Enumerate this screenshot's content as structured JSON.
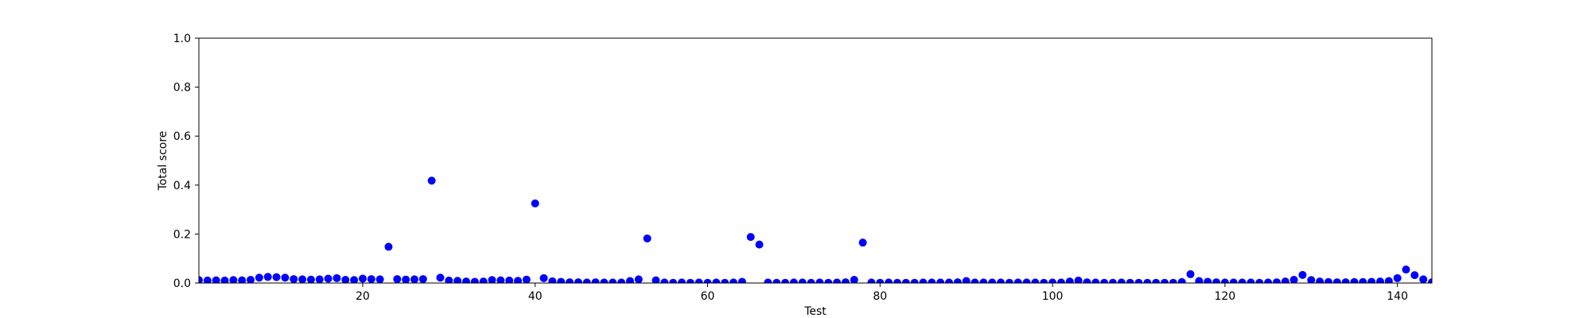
{
  "chart_data": {
    "type": "scatter",
    "title": "",
    "xlabel": "Test",
    "ylabel": "Total score",
    "xlim": [
      1,
      144
    ],
    "ylim": [
      0.0,
      1.0
    ],
    "x_ticks": [
      20,
      40,
      60,
      80,
      100,
      120,
      140
    ],
    "x_tick_labels": [
      "20",
      "40",
      "60",
      "80",
      "100",
      "120",
      "140"
    ],
    "y_ticks": [
      0.0,
      0.2,
      0.4,
      0.6,
      0.8,
      1.0
    ],
    "y_tick_labels": [
      "0.0",
      "0.2",
      "0.4",
      "0.6",
      "0.8",
      "1.0"
    ],
    "grid": false,
    "legend": "none",
    "marker_color": "#0000ff",
    "series": [
      {
        "x": [
          1,
          2,
          3,
          4,
          5,
          6,
          7,
          8,
          9,
          10,
          11,
          12,
          13,
          14,
          15,
          16,
          17,
          18,
          19,
          20,
          21,
          22,
          23,
          24,
          25,
          26,
          27,
          28,
          29,
          30,
          31,
          32,
          33,
          34,
          35,
          36,
          37,
          38,
          39,
          40,
          41,
          42,
          43,
          44,
          45,
          46,
          47,
          48,
          49,
          50,
          51,
          52,
          53,
          54,
          55,
          56,
          57,
          58,
          59,
          60,
          61,
          62,
          63,
          64,
          65,
          66,
          67,
          68,
          69,
          70,
          71,
          72,
          73,
          74,
          75,
          76,
          77,
          78,
          79,
          80,
          81,
          82,
          83,
          84,
          85,
          86,
          87,
          88,
          89,
          90,
          91,
          92,
          93,
          94,
          95,
          96,
          97,
          98,
          99,
          100,
          101,
          102,
          103,
          104,
          105,
          106,
          107,
          108,
          109,
          110,
          111,
          112,
          113,
          114,
          115,
          116,
          117,
          118,
          119,
          120,
          121,
          122,
          123,
          124,
          125,
          126,
          127,
          128,
          129,
          130,
          131,
          132,
          133,
          134,
          135,
          136,
          137,
          138,
          139,
          140,
          141,
          142,
          143,
          144
        ],
        "y": [
          0.012,
          0.01,
          0.011,
          0.01,
          0.012,
          0.011,
          0.013,
          0.022,
          0.025,
          0.024,
          0.022,
          0.016,
          0.015,
          0.014,
          0.015,
          0.018,
          0.02,
          0.013,
          0.012,
          0.018,
          0.016,
          0.015,
          0.148,
          0.016,
          0.014,
          0.015,
          0.016,
          0.418,
          0.022,
          0.01,
          0.009,
          0.006,
          0.005,
          0.006,
          0.012,
          0.011,
          0.01,
          0.009,
          0.014,
          0.325,
          0.02,
          0.007,
          0.005,
          0.003,
          0.003,
          0.002,
          0.003,
          0.002,
          0.002,
          0.002,
          0.008,
          0.015,
          0.182,
          0.011,
          0.002,
          0.001,
          0.002,
          0.001,
          0.002,
          0.001,
          0.002,
          0.001,
          0.002,
          0.005,
          0.188,
          0.157,
          0.002,
          0.001,
          0.001,
          0.002,
          0.002,
          0.001,
          0.002,
          0.001,
          0.002,
          0.003,
          0.013,
          0.165,
          0.002,
          0.001,
          0.002,
          0.001,
          0.001,
          0.001,
          0.002,
          0.002,
          0.002,
          0.002,
          0.003,
          0.008,
          0.002,
          0.002,
          0.002,
          0.002,
          0.001,
          0.002,
          0.002,
          0.002,
          0.001,
          0.002,
          0.002,
          0.006,
          0.01,
          0.003,
          0.002,
          0.001,
          0.001,
          0.002,
          0.001,
          0.001,
          0.001,
          0.001,
          0.001,
          0.001,
          0.004,
          0.036,
          0.008,
          0.005,
          0.003,
          0.002,
          0.002,
          0.002,
          0.002,
          0.001,
          0.002,
          0.003,
          0.006,
          0.013,
          0.033,
          0.012,
          0.006,
          0.004,
          0.003,
          0.003,
          0.004,
          0.004,
          0.005,
          0.006,
          0.008,
          0.02,
          0.055,
          0.032,
          0.015,
          0.003
        ]
      }
    ]
  }
}
